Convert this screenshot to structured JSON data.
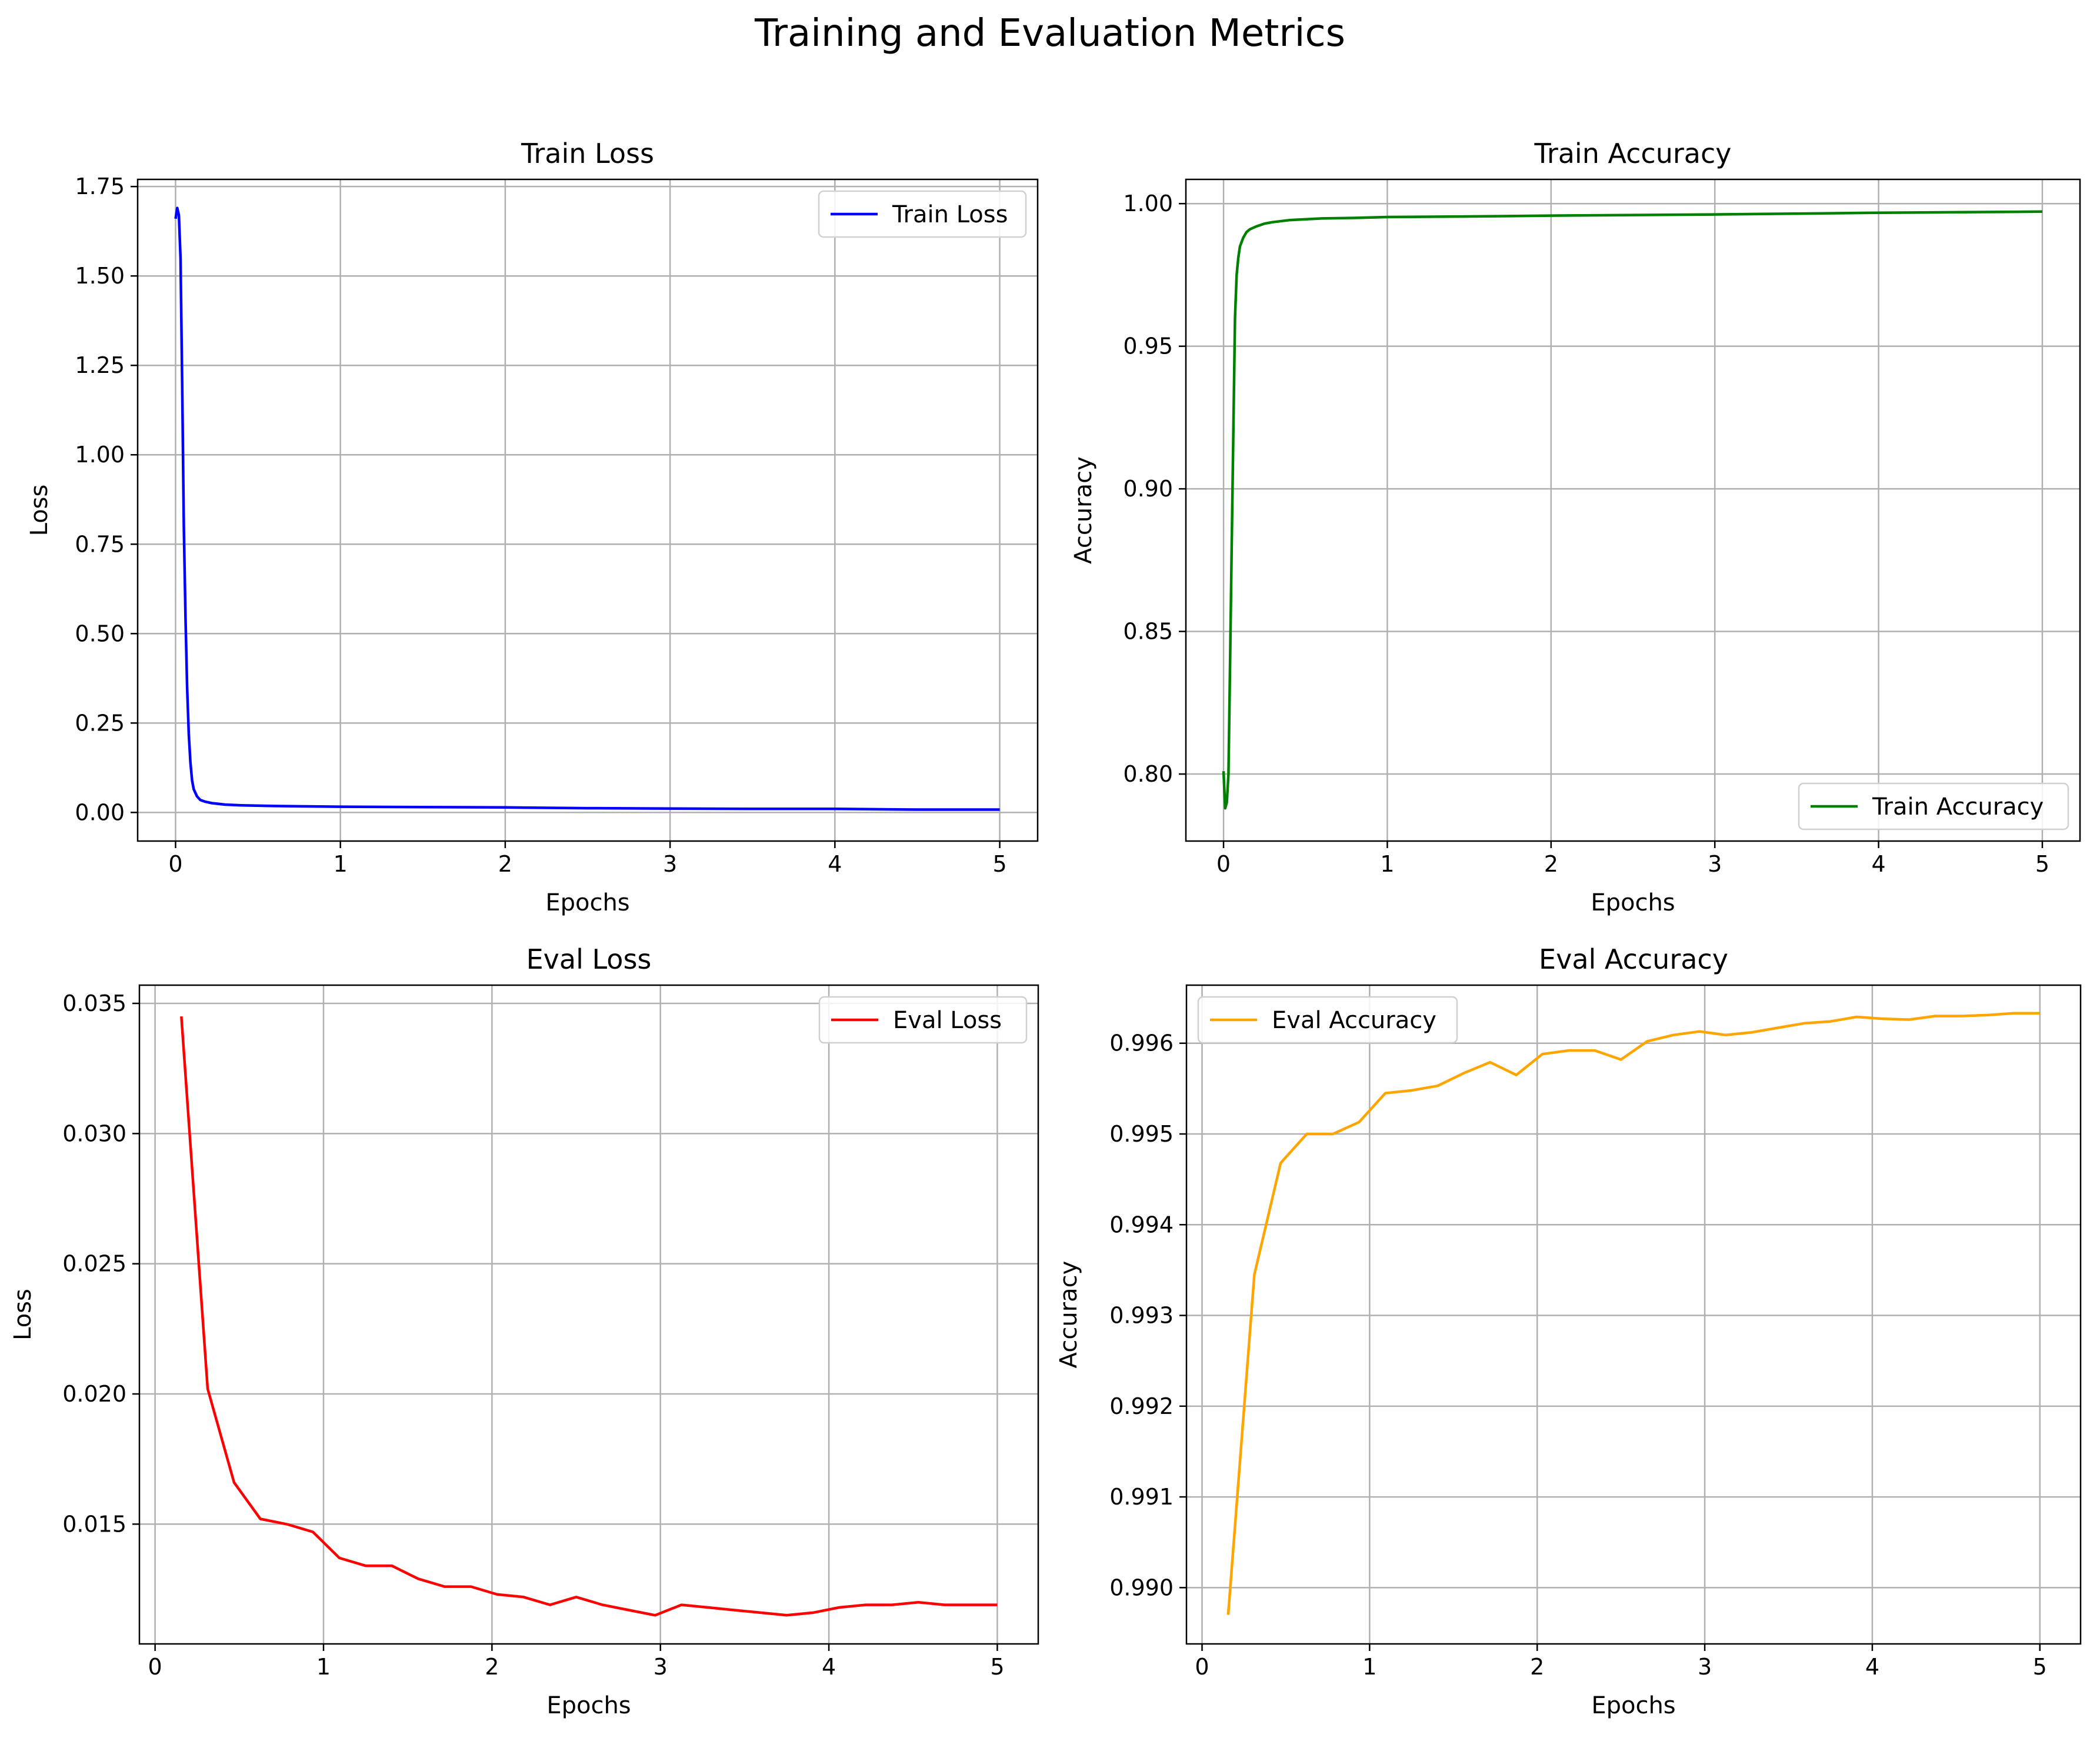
{
  "suptitle": "Training and Evaluation Metrics",
  "chart_data": [
    {
      "type": "line",
      "title": "Train Loss",
      "xlabel": "Epochs",
      "ylabel": "Loss",
      "xlim": [
        -0.23,
        5.23
      ],
      "ylim": [
        -0.08,
        1.77
      ],
      "xticks": [
        0,
        1,
        2,
        3,
        4,
        5
      ],
      "xtick_labels": [
        "0",
        "1",
        "2",
        "3",
        "4",
        "5"
      ],
      "yticks": [
        0.0,
        0.25,
        0.5,
        0.75,
        1.0,
        1.25,
        1.5,
        1.75
      ],
      "ytick_labels": [
        "0.00",
        "0.25",
        "0.50",
        "0.75",
        "1.00",
        "1.25",
        "1.50",
        "1.75"
      ],
      "grid": true,
      "legend_position": "top-right",
      "series": [
        {
          "name": "Train Loss",
          "color": "#0000ff",
          "x": [
            0.0,
            0.01,
            0.02,
            0.03,
            0.04,
            0.05,
            0.06,
            0.07,
            0.08,
            0.09,
            0.1,
            0.11,
            0.13,
            0.15,
            0.18,
            0.22,
            0.3,
            0.4,
            0.6,
            0.8,
            1.0,
            1.5,
            2.0,
            2.5,
            3.0,
            3.5,
            4.0,
            4.5,
            5.0
          ],
          "y": [
            1.66,
            1.69,
            1.67,
            1.55,
            1.2,
            0.8,
            0.55,
            0.35,
            0.22,
            0.14,
            0.09,
            0.065,
            0.045,
            0.035,
            0.03,
            0.026,
            0.022,
            0.02,
            0.018,
            0.017,
            0.016,
            0.015,
            0.014,
            0.012,
            0.011,
            0.01,
            0.01,
            0.008,
            0.008
          ]
        }
      ]
    },
    {
      "type": "line",
      "title": "Train Accuracy",
      "xlabel": "Epochs",
      "ylabel": "Accuracy",
      "xlim": [
        -0.23,
        5.23
      ],
      "ylim": [
        0.7765,
        1.0085
      ],
      "xticks": [
        0,
        1,
        2,
        3,
        4,
        5
      ],
      "xtick_labels": [
        "0",
        "1",
        "2",
        "3",
        "4",
        "5"
      ],
      "yticks": [
        0.8,
        0.85,
        0.9,
        0.95,
        1.0
      ],
      "ytick_labels": [
        "0.80",
        "0.85",
        "0.90",
        "0.95",
        "1.00"
      ],
      "grid": true,
      "legend_position": "bottom-right",
      "series": [
        {
          "name": "Train Accuracy",
          "color": "#008000",
          "x": [
            0.0,
            0.01,
            0.02,
            0.03,
            0.04,
            0.05,
            0.06,
            0.07,
            0.08,
            0.09,
            0.1,
            0.12,
            0.14,
            0.16,
            0.2,
            0.25,
            0.3,
            0.4,
            0.6,
            0.8,
            1.0,
            1.5,
            2.0,
            2.5,
            3.0,
            3.5,
            4.0,
            4.5,
            5.0
          ],
          "y": [
            0.801,
            0.788,
            0.79,
            0.8,
            0.84,
            0.88,
            0.92,
            0.96,
            0.975,
            0.981,
            0.985,
            0.988,
            0.99,
            0.991,
            0.992,
            0.993,
            0.9935,
            0.9942,
            0.9948,
            0.995,
            0.9953,
            0.9955,
            0.9958,
            0.996,
            0.9962,
            0.9965,
            0.9968,
            0.997,
            0.9972
          ]
        }
      ]
    },
    {
      "type": "line",
      "title": "Eval Loss",
      "xlabel": "Epochs",
      "ylabel": "Loss",
      "xlim": [
        -0.093,
        5.243
      ],
      "ylim": [
        0.0104,
        0.0357
      ],
      "xticks": [
        0,
        1,
        2,
        3,
        4,
        5
      ],
      "xtick_labels": [
        "0",
        "1",
        "2",
        "3",
        "4",
        "5"
      ],
      "yticks": [
        0.015,
        0.02,
        0.025,
        0.03,
        0.035
      ],
      "ytick_labels": [
        "0.015",
        "0.020",
        "0.025",
        "0.030",
        "0.035"
      ],
      "grid": true,
      "legend_position": "top-right",
      "series": [
        {
          "name": "Eval Loss",
          "color": "#ff0000",
          "x": [
            0.156,
            0.312,
            0.469,
            0.625,
            0.781,
            0.937,
            1.094,
            1.25,
            1.406,
            1.562,
            1.719,
            1.875,
            2.031,
            2.187,
            2.344,
            2.5,
            2.656,
            2.812,
            2.969,
            3.125,
            3.281,
            3.437,
            3.594,
            3.75,
            3.906,
            4.062,
            4.219,
            4.375,
            4.531,
            4.687,
            4.844,
            5.0
          ],
          "y": [
            0.0345,
            0.0202,
            0.0166,
            0.0152,
            0.015,
            0.0147,
            0.0137,
            0.0134,
            0.0134,
            0.0129,
            0.0126,
            0.0126,
            0.0123,
            0.0122,
            0.0119,
            0.0122,
            0.0119,
            0.0117,
            0.0115,
            0.0119,
            0.0118,
            0.0117,
            0.0116,
            0.0115,
            0.0116,
            0.0118,
            0.0119,
            0.0119,
            0.012,
            0.0119,
            0.0119,
            0.0119
          ]
        }
      ]
    },
    {
      "type": "line",
      "title": "Eval Accuracy",
      "xlabel": "Epochs",
      "ylabel": "Accuracy",
      "xlim": [
        -0.093,
        5.243
      ],
      "ylim": [
        0.98938,
        0.99664
      ],
      "xticks": [
        0,
        1,
        2,
        3,
        4,
        5
      ],
      "xtick_labels": [
        "0",
        "1",
        "2",
        "3",
        "4",
        "5"
      ],
      "yticks": [
        0.99,
        0.991,
        0.992,
        0.993,
        0.994,
        0.995,
        0.996
      ],
      "ytick_labels": [
        "0.990",
        "0.991",
        "0.992",
        "0.993",
        "0.994",
        "0.995",
        "0.996"
      ],
      "grid": true,
      "legend_position": "top-left",
      "series": [
        {
          "name": "Eval Accuracy",
          "color": "#ffa500",
          "x": [
            0.156,
            0.312,
            0.469,
            0.625,
            0.781,
            0.937,
            1.094,
            1.25,
            1.406,
            1.562,
            1.719,
            1.875,
            2.031,
            2.187,
            2.344,
            2.5,
            2.656,
            2.812,
            2.969,
            3.125,
            3.281,
            3.437,
            3.594,
            3.75,
            3.906,
            4.062,
            4.219,
            4.375,
            4.531,
            4.687,
            4.844,
            5.0
          ],
          "y": [
            0.9897,
            0.99345,
            0.99468,
            0.995,
            0.995,
            0.99513,
            0.99545,
            0.99548,
            0.99553,
            0.99567,
            0.99579,
            0.99565,
            0.99588,
            0.99592,
            0.99592,
            0.99582,
            0.99602,
            0.99609,
            0.99613,
            0.99609,
            0.99612,
            0.99617,
            0.99622,
            0.99624,
            0.99629,
            0.99627,
            0.99626,
            0.9963,
            0.9963,
            0.99631,
            0.99633,
            0.99633
          ]
        }
      ]
    }
  ]
}
